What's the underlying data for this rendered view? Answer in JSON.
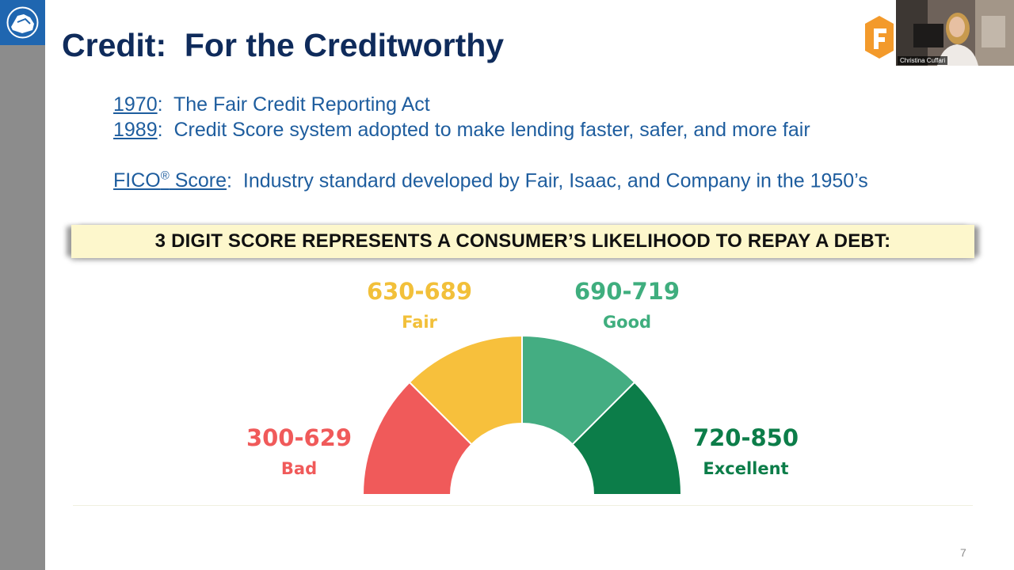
{
  "slide": {
    "title": "Credit:  For the Creditworthy",
    "lines": [
      {
        "link": "1970",
        "text": ":  The Fair Credit Reporting Act"
      },
      {
        "link": "1989",
        "text": ":  Credit Score system adopted to make lending faster, safer, and more fair"
      },
      {
        "link": "FICO",
        "sup": "®",
        "link2": " Score",
        "text": ":  Industry standard developed by Fair, Isaac, and Company in the 1950’s"
      }
    ],
    "banner": "3 DIGIT SCORE REPRESENTS A CONSUMER’S LIKELIHOOD TO REPAY A DEBT:",
    "page_number": "7"
  },
  "gauge": {
    "segments": [
      {
        "range": "300-629",
        "label": "Bad",
        "color": "#f05a5a"
      },
      {
        "range": "630-689",
        "label": "Fair",
        "color": "#f7c03c"
      },
      {
        "range": "690-719",
        "label": "Good",
        "color": "#44ad82"
      },
      {
        "range": "720-850",
        "label": "Excellent",
        "color": "#0c7d49"
      }
    ]
  },
  "video": {
    "participant_name": "Christina Cuffari"
  },
  "colors": {
    "title": "#0f2b5b",
    "body_text": "#1e5d9e",
    "banner_bg": "#fdf7cc",
    "sidebar": "#8c8c8c",
    "logo_box": "#1f66b0",
    "brand_orange": "#f39a2b"
  },
  "icons": {
    "logo": "rock-logo-icon",
    "brand": "f-logo-icon"
  }
}
